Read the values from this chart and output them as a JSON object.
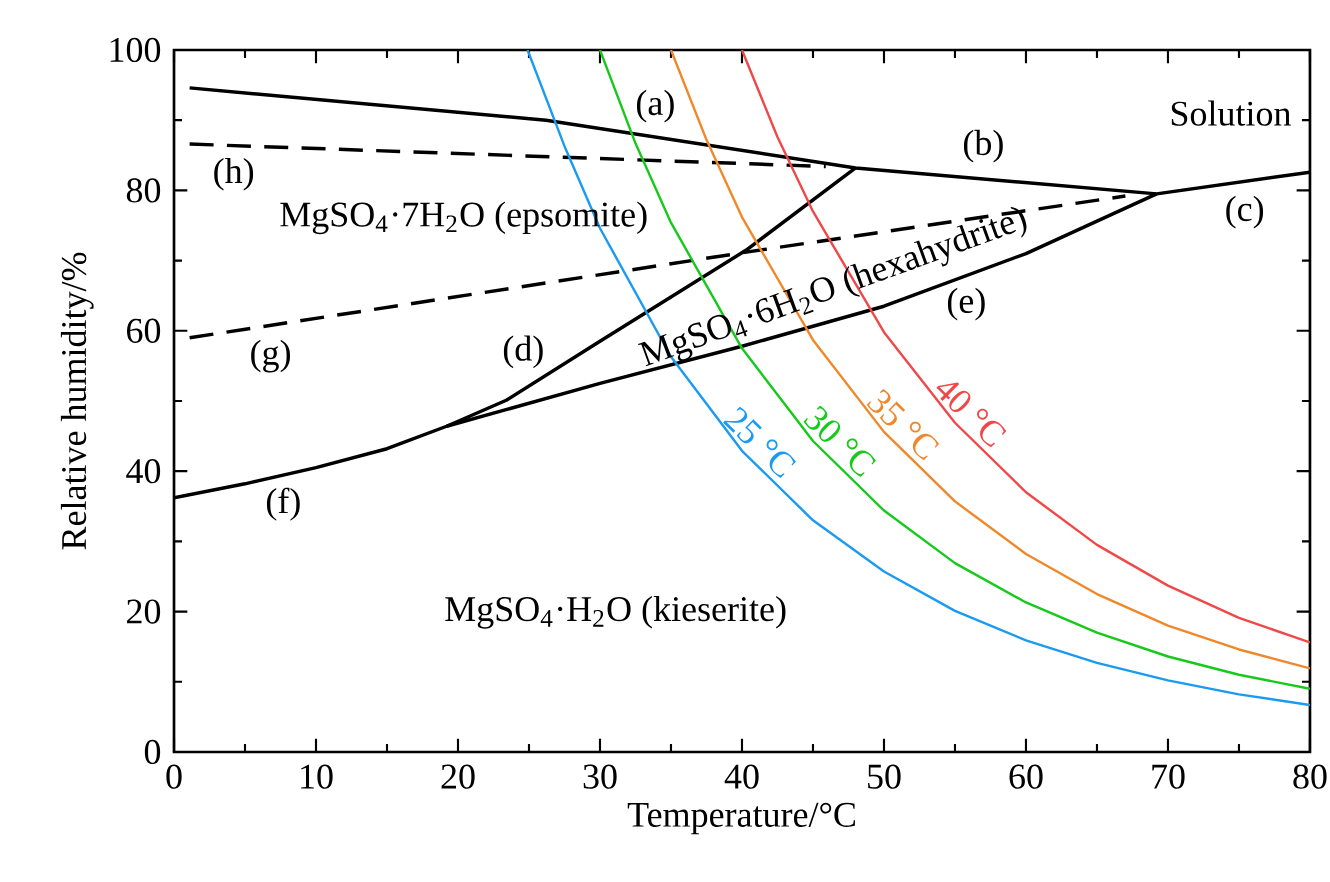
{
  "chart_data": {
    "type": "line",
    "xlabel": "Temperature/°C",
    "ylabel": "Relative humidity/%",
    "xlim": [
      0,
      80
    ],
    "ylim": [
      0,
      100
    ],
    "xticks": [
      0,
      10,
      20,
      30,
      40,
      50,
      60,
      70,
      80
    ],
    "yticks": [
      0,
      20,
      40,
      60,
      80,
      100
    ],
    "legend": false,
    "grid": false,
    "marker": "none",
    "series": [
      {
        "color": "#000000",
        "line_style": "solid",
        "x": [
          1.1,
          26.2,
          48.0,
          69.2,
          80
        ],
        "values": [
          94.6,
          90.0,
          83.2,
          79.5,
          82.6
        ]
      },
      {
        "color": "#000000",
        "line_style": "solid",
        "x": [
          0,
          5,
          10,
          15,
          19.2,
          23.4,
          30,
          40.3,
          48.0
        ],
        "values": [
          36.2,
          38.2,
          40.5,
          43.2,
          46.4,
          50.1,
          58.5,
          71.5,
          83.2
        ]
      },
      {
        "color": "#000000",
        "line_style": "solid",
        "x": [
          19.2,
          30,
          40,
          50,
          60,
          69.2
        ],
        "values": [
          46.4,
          52.5,
          57.8,
          63.5,
          71,
          79.5
        ]
      },
      {
        "color": "#000000",
        "line_style": "dashed",
        "x": [
          1.1,
          40.3,
          67.0
        ],
        "values": [
          59.0,
          71.2,
          79.2
        ]
      },
      {
        "color": "#000000",
        "line_style": "dashed",
        "x": [
          1.1,
          45.9
        ],
        "values": [
          86.6,
          83.4
        ]
      },
      {
        "name": "25 °C",
        "color": "#1a9af0",
        "line_style": "solid",
        "x": [
          24.9,
          27.5,
          30,
          35,
          40,
          45,
          50,
          55,
          60,
          65,
          70,
          75,
          80
        ],
        "values": [
          100,
          86.3,
          74.6,
          56.3,
          42.9,
          33.0,
          25.7,
          20.1,
          15.9,
          12.7,
          10.2,
          8.2,
          6.7
        ]
      },
      {
        "name": "30 °C",
        "color": "#16c91b",
        "line_style": "solid",
        "x": [
          30,
          32.5,
          35,
          40,
          45,
          50,
          55,
          60,
          65,
          70,
          75,
          80
        ],
        "values": [
          100,
          86.7,
          75.4,
          57.5,
          44.3,
          34.4,
          26.9,
          21.3,
          17.0,
          13.6,
          11.0,
          9.0
        ]
      },
      {
        "name": "35 °C",
        "color": "#f0882a",
        "line_style": "solid",
        "x": [
          35,
          37.5,
          40,
          45,
          50,
          55,
          60,
          65,
          70,
          75,
          80
        ],
        "values": [
          100,
          87.2,
          76.2,
          58.7,
          45.6,
          35.7,
          28.2,
          22.5,
          18.0,
          14.6,
          11.9
        ]
      },
      {
        "name": "40 °C",
        "color": "#f04848",
        "line_style": "solid",
        "x": [
          40,
          42.5,
          45,
          50,
          55,
          60,
          65,
          70,
          75,
          80
        ],
        "values": [
          100,
          87.6,
          77.0,
          59.8,
          46.9,
          37.0,
          29.5,
          23.7,
          19.1,
          15.6
        ]
      }
    ],
    "annotations": [
      "(a)",
      "(b)",
      "(c)",
      "(d)",
      "(e)",
      "(f)",
      "(g)",
      "(h)",
      "Solution",
      "MgSO$_{4}$·7H$_{2}$O (epsomite)",
      "MgSO$_{4}$·6H$_{2}$O (hexahydrite)",
      "MgSO$_{4}$·H$_{2}$O (kieserite)"
    ]
  }
}
